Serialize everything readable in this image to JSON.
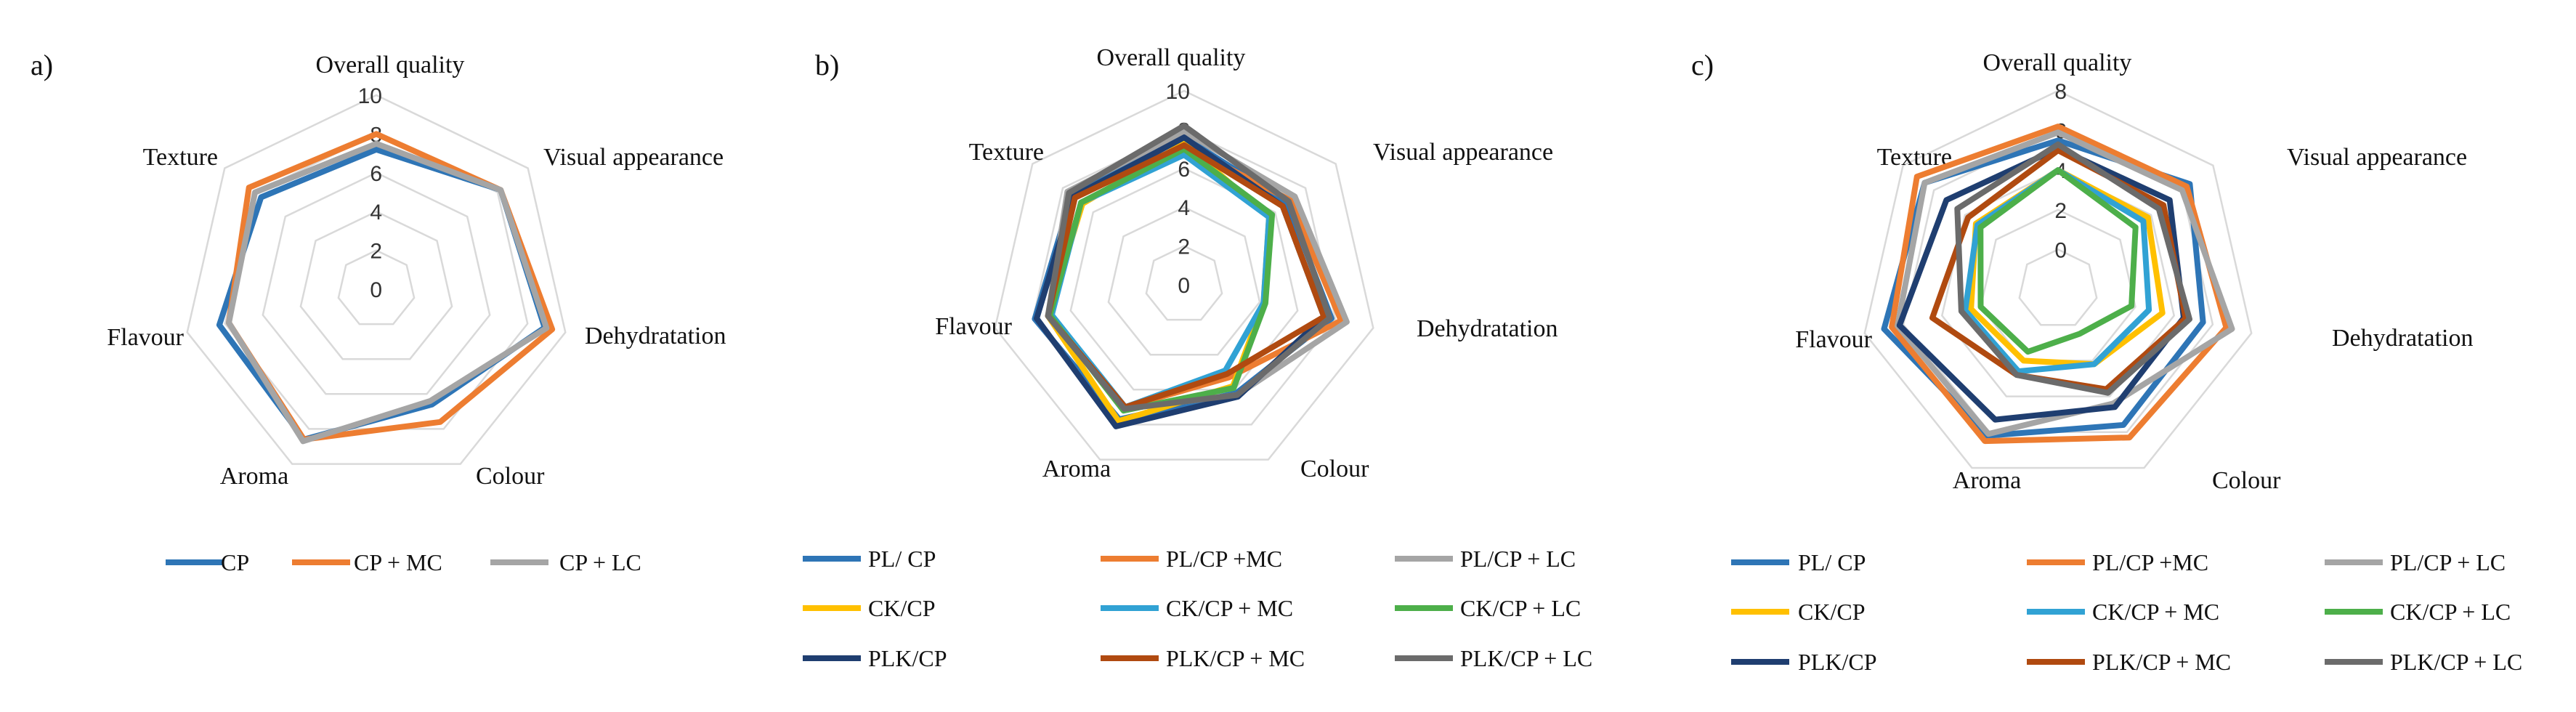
{
  "chart_data": [
    {
      "type": "radar",
      "panel_label": "a)",
      "categories": [
        "Overall quality",
        "Visual appearance",
        "Dehydratation",
        "Colour",
        "Aroma",
        "Flavour",
        "Texture"
      ],
      "rmin": 0,
      "rmax": 10,
      "ticks": [
        0,
        2,
        4,
        6,
        8,
        10
      ],
      "tick_labels": [
        "0",
        "2",
        "4",
        "6",
        "8",
        "10"
      ],
      "series": [
        {
          "name": "CP",
          "color": "#2E75B6",
          "values": [
            7.2,
            8.2,
            8.9,
            6.6,
            8.6,
            8.3,
            7.6
          ]
        },
        {
          "name": "CP + MC",
          "color": "#ED7D31",
          "values": [
            8.0,
            8.2,
            9.3,
            7.6,
            8.6,
            7.8,
            8.4
          ]
        },
        {
          "name": "CP +  LC",
          "color": "#A5A5A5",
          "values": [
            7.5,
            8.2,
            9.0,
            6.4,
            8.7,
            7.8,
            8.0
          ]
        }
      ]
    },
    {
      "type": "radar",
      "panel_label": "b)",
      "categories": [
        "Overall quality",
        "Visual appearance",
        "Dehydratation",
        "Colour",
        "Aroma",
        "Flavour",
        "Texture"
      ],
      "rmin": 0,
      "rmax": 10,
      "ticks": [
        0,
        2,
        4,
        6,
        8,
        10
      ],
      "tick_labels": [
        "0",
        "2",
        "4",
        "6",
        "8",
        "10"
      ],
      "series": [
        {
          "name": "PL/ CP",
          "color": "#2E75B6",
          "values": [
            7.6,
            6.8,
            7.8,
            6.2,
            7.7,
            7.9,
            7.4
          ]
        },
        {
          "name": "PL/CP +MC",
          "color": "#ED7D31",
          "values": [
            7.2,
            7.0,
            8.3,
            5.3,
            7.0,
            7.2,
            7.2
          ]
        },
        {
          "name": "PL/CP + LC",
          "color": "#A5A5A5",
          "values": [
            7.9,
            7.3,
            8.6,
            6.3,
            7.1,
            7.2,
            7.7
          ]
        },
        {
          "name": "CK/CP",
          "color": "#FFC000",
          "values": [
            7.3,
            5.6,
            4.2,
            5.8,
            7.8,
            7.2,
            6.7
          ]
        },
        {
          "name": "CK/CP + MC",
          "color": "#31A2D4",
          "values": [
            6.7,
            5.6,
            4.2,
            4.9,
            7.0,
            7.0,
            6.8
          ]
        },
        {
          "name": "CK/CP + LC",
          "color": "#4DAF4A",
          "values": [
            7.0,
            5.8,
            4.3,
            5.9,
            7.2,
            7.1,
            6.8
          ]
        },
        {
          "name": "PLK/CP",
          "color": "#1F3E70",
          "values": [
            7.6,
            6.5,
            7.4,
            6.4,
            8.1,
            7.8,
            7.3
          ]
        },
        {
          "name": "PLK/CP + MC",
          "color": "#B04A10",
          "values": [
            7.2,
            6.5,
            7.4,
            5.1,
            7.0,
            7.2,
            7.2
          ]
        },
        {
          "name": "PLK/CP + LC",
          "color": "#6B6B6B",
          "values": [
            8.2,
            6.9,
            7.7,
            6.3,
            7.1,
            7.2,
            7.6
          ]
        }
      ]
    },
    {
      "type": "radar",
      "panel_label": "c)",
      "categories": [
        "Overall quality",
        "Visual appearance",
        "Dehydratation",
        "Colour",
        "Aroma",
        "Flavour",
        "Texture"
      ],
      "rmin": -2,
      "rmax": 8,
      "ticks": [
        -2,
        0,
        2,
        4,
        6,
        8
      ],
      "tick_labels": [
        "",
        "0",
        "2",
        "4",
        "6",
        "8"
      ],
      "series": [
        {
          "name": "PL/ CP",
          "color": "#2E75B6",
          "values": [
            5.5,
            6.5,
            5.5,
            5.6,
            6.2,
            7.0,
            6.6
          ]
        },
        {
          "name": "PL/CP +MC",
          "color": "#ED7D31",
          "values": [
            6.2,
            6.3,
            6.7,
            6.3,
            6.5,
            6.6,
            7.1
          ]
        },
        {
          "name": "PL/CP + LC",
          "color": "#A5A5A5",
          "values": [
            5.9,
            6.0,
            7.0,
            4.4,
            6.1,
            6.3,
            6.6
          ]
        },
        {
          "name": "CK/CP",
          "color": "#FFC000",
          "values": [
            4.0,
            3.8,
            3.4,
            2.2,
            2.0,
            2.5,
            3.3
          ]
        },
        {
          "name": "CK/CP + MC",
          "color": "#31A2D4",
          "values": [
            4.0,
            3.5,
            2.7,
            2.2,
            2.6,
            2.8,
            3.2
          ]
        },
        {
          "name": "CK/CP + LC",
          "color": "#4DAF4A",
          "values": [
            4.0,
            3.0,
            1.8,
            0.5,
            1.5,
            2.0,
            3.0
          ]
        },
        {
          "name": "PLK/CP",
          "color": "#1F3E70",
          "values": [
            5.1,
            5.2,
            4.5,
            4.6,
            5.3,
            6.2,
            5.2
          ]
        },
        {
          "name": "PLK/CP + MC",
          "color": "#B04A10",
          "values": [
            5.0,
            4.8,
            4.6,
            3.6,
            2.8,
            4.5,
            3.8
          ]
        },
        {
          "name": "PLK/CP + LC",
          "color": "#6B6B6B",
          "values": [
            5.3,
            4.5,
            4.8,
            3.8,
            2.8,
            3.0,
            4.5
          ]
        }
      ]
    }
  ]
}
